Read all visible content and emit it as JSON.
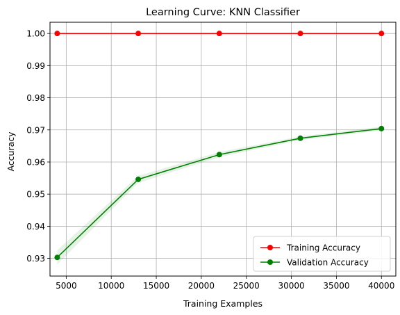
{
  "chart_data": {
    "type": "line",
    "title": "Learning Curve: KNN Classifier",
    "xlabel": "Training Examples",
    "ylabel": "Accuracy",
    "xlim": [
      3200,
      41600
    ],
    "ylim": [
      0.9245,
      1.0035
    ],
    "xticks": [
      5000,
      10000,
      15000,
      20000,
      25000,
      30000,
      35000,
      40000
    ],
    "yticks": [
      0.93,
      0.94,
      0.95,
      0.96,
      0.97,
      0.98,
      0.99,
      1.0
    ],
    "xtick_labels": [
      "5000",
      "10000",
      "15000",
      "20000",
      "25000",
      "30000",
      "35000",
      "40000"
    ],
    "ytick_labels": [
      "0.93",
      "0.94",
      "0.95",
      "0.96",
      "0.97",
      "0.98",
      "0.99",
      "1.00"
    ],
    "grid": true,
    "legend_position": "lower-right",
    "x": [
      4000,
      13000,
      22000,
      31000,
      40000
    ],
    "series": [
      {
        "name": "Training Accuracy",
        "color": "#ff0000",
        "marker": "circle",
        "values": [
          1.0,
          1.0,
          1.0,
          1.0,
          1.0
        ],
        "band_low": [
          1.0,
          1.0,
          1.0,
          1.0,
          1.0
        ],
        "band_high": [
          1.0,
          1.0,
          1.0,
          1.0,
          1.0
        ]
      },
      {
        "name": "Validation Accuracy",
        "color": "#008000",
        "marker": "circle",
        "values": [
          0.9303,
          0.9546,
          0.9623,
          0.9674,
          0.9704
        ],
        "band_low": [
          0.9281,
          0.9535,
          0.9615,
          0.9668,
          0.9698
        ],
        "band_high": [
          0.9325,
          0.9557,
          0.9631,
          0.968,
          0.971
        ]
      }
    ]
  }
}
